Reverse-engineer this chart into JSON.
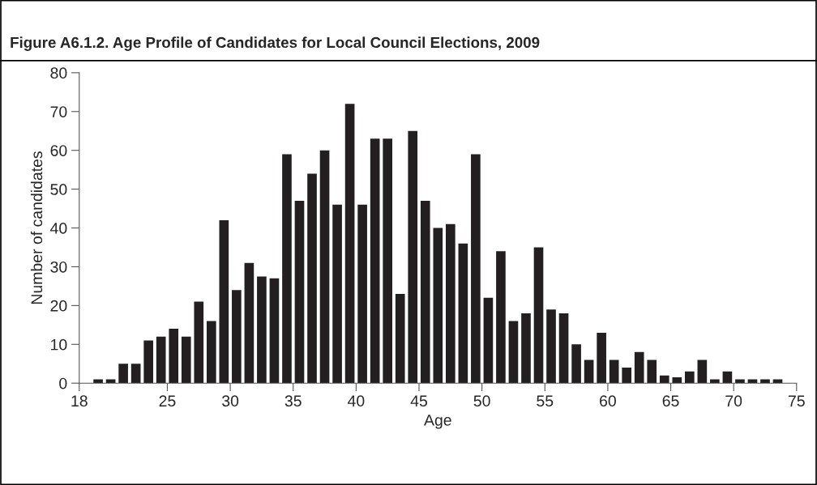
{
  "chart_data": {
    "type": "histogram",
    "title": "Figure A6.1.2. Age Profile of Candidates for Local Council Elections, 2009",
    "xlabel": "Age",
    "ylabel": "Number of candidates",
    "color": "#231f20",
    "bins": [
      19,
      20,
      21,
      22,
      23,
      24,
      25,
      26,
      27,
      28,
      29,
      30,
      31,
      32,
      33,
      34,
      35,
      36,
      37,
      38,
      39,
      40,
      41,
      42,
      43,
      44,
      45,
      46,
      47,
      48,
      49,
      50,
      51,
      52,
      53,
      54,
      55,
      56,
      57,
      58,
      59,
      60,
      61,
      62,
      63,
      64,
      65,
      66,
      67,
      68,
      69,
      70,
      71,
      72,
      73,
      74
    ],
    "values": [
      1,
      1,
      5,
      5,
      11,
      12,
      14,
      12,
      21,
      16,
      42,
      24,
      31,
      27.5,
      27,
      59,
      47,
      54,
      60,
      46,
      72,
      46,
      63,
      63,
      23,
      65,
      47,
      40,
      41,
      36,
      59,
      22,
      34,
      16,
      18,
      35,
      19,
      18,
      10,
      6,
      13,
      6,
      4,
      8,
      6,
      2,
      1.5,
      3,
      6,
      1,
      3,
      1,
      1,
      1,
      1
    ],
    "xlim": [
      18,
      75
    ],
    "xticks": [
      18,
      25,
      30,
      35,
      40,
      45,
      50,
      55,
      60,
      65,
      70,
      75
    ],
    "ylim": [
      0,
      80
    ],
    "yticks": [
      0,
      10,
      20,
      30,
      40,
      50,
      60,
      70,
      80
    ],
    "grid": false
  }
}
